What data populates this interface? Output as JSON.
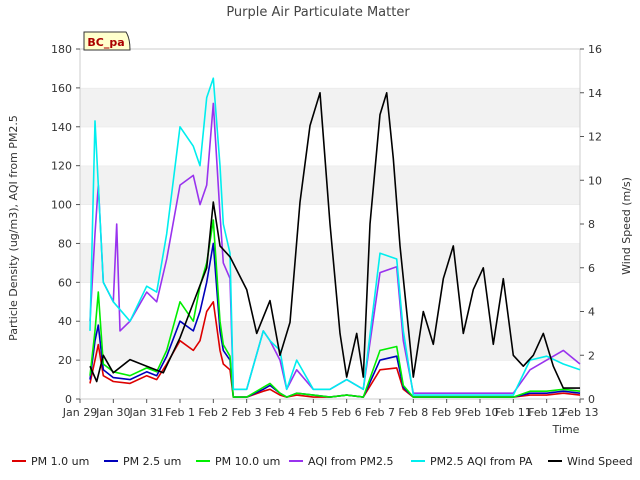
{
  "chart_data": {
    "type": "line",
    "title": "Purple Air Particulate Matter",
    "badge": "BC_pa",
    "xlabel": "Time",
    "ylabel_left": "Particle Density (ug/m3), AQI from PM2.5",
    "ylabel_right": "Wind Speed (m/s)",
    "x_tick_labels": [
      "Jan 29",
      "Jan 30",
      "Jan 31",
      "Feb 1",
      "Feb 2",
      "Feb 3",
      "Feb 4",
      "Feb 5",
      "Feb 6",
      "Feb 7",
      "Feb 8",
      "Feb 9",
      "Feb 10",
      "Feb 11",
      "Feb 12",
      "Feb 13"
    ],
    "xlim_days": [
      0,
      15
    ],
    "ylim_left": [
      0,
      180
    ],
    "yticks_left": [
      0,
      20,
      40,
      60,
      80,
      100,
      120,
      140,
      160,
      180
    ],
    "ylim_right": [
      0,
      16
    ],
    "yticks_right": [
      0,
      2,
      4,
      6,
      8,
      10,
      12,
      14,
      16
    ],
    "series": [
      {
        "name": "PM 1.0 um",
        "color": "#dd0000",
        "axis": "left",
        "x": [
          0.3,
          0.45,
          0.55,
          0.7,
          1.0,
          1.5,
          2.0,
          2.3,
          2.6,
          3.0,
          3.4,
          3.6,
          3.8,
          4.0,
          4.2,
          4.3,
          4.5,
          4.6,
          5.0,
          5.5,
          5.7,
          6.0,
          6.2,
          6.5,
          7.0,
          7.5,
          8.0,
          8.5,
          9.0,
          9.5,
          9.7,
          10.0,
          11.0,
          12.0,
          13.0,
          13.5,
          14.0,
          14.5,
          15.0
        ],
        "values": [
          8,
          20,
          28,
          12,
          9,
          8,
          12,
          10,
          18,
          30,
          25,
          30,
          45,
          50,
          25,
          18,
          15,
          1,
          1,
          4,
          5,
          2,
          1,
          2,
          1,
          1,
          2,
          1,
          15,
          16,
          5,
          1,
          1,
          1,
          1,
          2,
          2,
          3,
          2
        ]
      },
      {
        "name": "PM 2.5 um",
        "color": "#0000bb",
        "axis": "left",
        "x": [
          0.3,
          0.45,
          0.55,
          0.7,
          1.0,
          1.5,
          2.0,
          2.3,
          2.6,
          3.0,
          3.4,
          3.6,
          3.8,
          4.0,
          4.2,
          4.3,
          4.5,
          4.6,
          5.0,
          5.5,
          5.7,
          6.0,
          6.2,
          6.5,
          7.0,
          7.5,
          8.0,
          8.5,
          9.0,
          9.5,
          9.7,
          10.0,
          11.0,
          12.0,
          13.0,
          13.5,
          14.0,
          14.5,
          15.0
        ],
        "values": [
          10,
          30,
          38,
          15,
          11,
          10,
          14,
          12,
          22,
          40,
          35,
          45,
          60,
          80,
          35,
          25,
          20,
          1,
          1,
          5,
          7,
          3,
          1,
          3,
          2,
          1,
          2,
          1,
          20,
          22,
          6,
          1,
          1,
          1,
          1,
          3,
          3,
          4,
          3
        ]
      },
      {
        "name": "PM 10.0 um",
        "color": "#00ee00",
        "axis": "left",
        "x": [
          0.3,
          0.45,
          0.55,
          0.7,
          1.0,
          1.5,
          2.0,
          2.3,
          2.6,
          3.0,
          3.4,
          3.6,
          3.8,
          4.0,
          4.2,
          4.3,
          4.5,
          4.6,
          5.0,
          5.5,
          5.7,
          6.0,
          6.2,
          6.5,
          7.0,
          7.5,
          8.0,
          8.5,
          9.0,
          9.5,
          9.7,
          10.0,
          11.0,
          12.0,
          13.0,
          13.5,
          14.0,
          14.5,
          15.0
        ],
        "values": [
          12,
          35,
          55,
          18,
          14,
          12,
          16,
          14,
          25,
          50,
          40,
          58,
          70,
          92,
          40,
          28,
          22,
          1,
          1,
          6,
          8,
          3,
          1,
          3,
          2,
          1,
          2,
          1,
          25,
          27,
          7,
          1,
          1,
          1,
          1,
          4,
          4,
          5,
          4
        ]
      },
      {
        "name": "AQI from PM2.5",
        "color": "#9933ee",
        "axis": "left",
        "x": [
          0.3,
          0.45,
          0.55,
          0.7,
          1.0,
          1.1,
          1.2,
          1.5,
          2.0,
          2.3,
          2.6,
          3.0,
          3.4,
          3.6,
          3.8,
          4.0,
          4.2,
          4.3,
          4.5,
          4.6,
          5.0,
          5.5,
          5.7,
          6.0,
          6.2,
          6.5,
          7.0,
          7.5,
          8.0,
          8.5,
          9.0,
          9.5,
          9.7,
          10.0,
          11.0,
          12.0,
          13.0,
          13.5,
          14.0,
          14.5,
          15.0
        ],
        "values": [
          40,
          85,
          110,
          60,
          50,
          90,
          35,
          40,
          55,
          50,
          72,
          110,
          115,
          100,
          110,
          152,
          95,
          70,
          62,
          5,
          5,
          35,
          30,
          20,
          5,
          15,
          5,
          5,
          10,
          5,
          65,
          68,
          30,
          3,
          3,
          3,
          3,
          15,
          20,
          25,
          18
        ]
      },
      {
        "name": "PM2.5 AQI from PA",
        "color": "#00eeee",
        "axis": "left",
        "x": [
          0.3,
          0.45,
          0.55,
          0.7,
          1.0,
          1.5,
          2.0,
          2.3,
          2.6,
          3.0,
          3.4,
          3.6,
          3.8,
          4.0,
          4.2,
          4.3,
          4.5,
          4.6,
          5.0,
          5.5,
          5.7,
          6.0,
          6.2,
          6.5,
          7.0,
          7.5,
          8.0,
          8.5,
          9.0,
          9.5,
          9.7,
          10.0,
          11.0,
          12.0,
          13.0,
          13.5,
          14.0,
          14.5,
          15.0
        ],
        "values": [
          35,
          143,
          110,
          60,
          50,
          40,
          58,
          55,
          85,
          140,
          130,
          120,
          155,
          165,
          120,
          90,
          75,
          5,
          5,
          35,
          30,
          25,
          5,
          20,
          5,
          5,
          10,
          5,
          75,
          72,
          35,
          2,
          2,
          2,
          2,
          20,
          22,
          18,
          15
        ]
      },
      {
        "name": "Wind Speed",
        "color": "#000000",
        "axis": "right",
        "x": [
          0.3,
          0.5,
          0.7,
          1.0,
          1.5,
          2.0,
          2.5,
          3.0,
          3.5,
          3.8,
          4.0,
          4.2,
          4.5,
          5.0,
          5.3,
          5.7,
          6.0,
          6.3,
          6.6,
          6.9,
          7.2,
          7.5,
          7.8,
          8.0,
          8.3,
          8.5,
          8.7,
          9.0,
          9.2,
          9.4,
          9.6,
          9.8,
          10.0,
          10.3,
          10.6,
          10.9,
          11.2,
          11.5,
          11.8,
          12.1,
          12.4,
          12.7,
          13.0,
          13.3,
          13.6,
          13.9,
          14.2,
          14.5,
          15.0
        ],
        "values": [
          1.5,
          0.8,
          2.0,
          1.2,
          1.8,
          1.5,
          1.2,
          2.8,
          4.8,
          6.0,
          9.0,
          7.0,
          6.5,
          5.0,
          3.0,
          4.5,
          2.0,
          3.5,
          9.0,
          12.5,
          14.0,
          8.0,
          3.0,
          1.0,
          3.0,
          1.0,
          8.0,
          13.0,
          14.0,
          11.0,
          7.0,
          4.0,
          1.0,
          4.0,
          2.5,
          5.5,
          7.0,
          3.0,
          5.0,
          6.0,
          2.5,
          5.5,
          2.0,
          1.5,
          2.0,
          3.0,
          1.5,
          0.5,
          0.5
        ]
      }
    ],
    "legend_position": "bottom"
  }
}
